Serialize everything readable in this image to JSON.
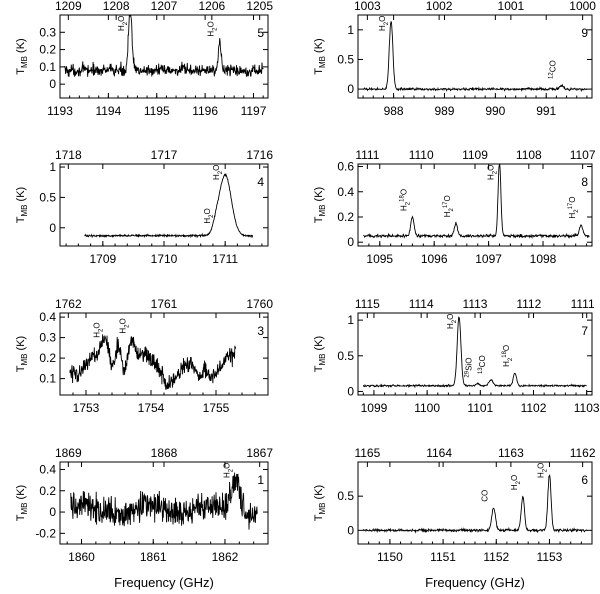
{
  "chart_data": [
    {
      "panel": "5",
      "type": "line",
      "ylabel": "T_MB (K)",
      "xlabel": "",
      "xlim": [
        1193,
        1197.3
      ],
      "ylim": [
        -0.08,
        0.4
      ],
      "xticks": [
        "1193",
        "1194",
        "1195",
        "1196",
        "1197"
      ],
      "topticks": [
        "1209",
        "1208",
        "1207",
        "1206",
        "1205"
      ],
      "topvals": [
        1209,
        1208,
        1207,
        1206,
        1205
      ],
      "yticks": [
        "0",
        "0.1",
        "0.2",
        "0.3"
      ],
      "baseline": 0.08,
      "noise": 0.035,
      "xstart": 1193.1,
      "xend": 1197.2,
      "lines": [
        {
          "label": "H2O",
          "x": 1194.45,
          "peak": 0.36,
          "width": 0.035
        },
        {
          "label": "H2O",
          "x": 1196.3,
          "peak": 0.16,
          "width": 0.03
        }
      ]
    },
    {
      "panel": "9",
      "type": "line",
      "ylabel": "T_MB (K)",
      "xlabel": "",
      "xlim": [
        987.3,
        991.9
      ],
      "ylim": [
        -0.15,
        1.25
      ],
      "xticks": [
        "988",
        "989",
        "990",
        "991"
      ],
      "topticks": [
        "1003",
        "1002",
        "1001",
        "1000"
      ],
      "topvals": [
        1003,
        1002,
        1001,
        1000
      ],
      "yticks": [
        "0",
        "0.5",
        "1"
      ],
      "baseline": 0.0,
      "noise": 0.02,
      "xstart": 987.4,
      "xend": 991.8,
      "lines": [
        {
          "label": "H2O",
          "x": 987.95,
          "peak": 1.15,
          "width": 0.035
        },
        {
          "label": "12CO",
          "x": 991.3,
          "peak": 0.07,
          "width": 0.03
        }
      ]
    },
    {
      "panel": "4",
      "type": "line",
      "ylabel": "T_MB (K)",
      "xlabel": "",
      "xlim": [
        1708.3,
        1711.7
      ],
      "ylim": [
        -0.3,
        1.05
      ],
      "xticks": [
        "1709",
        "1710",
        "1711"
      ],
      "topticks": [
        "1718",
        "1717",
        "1716"
      ],
      "topvals": [
        1718,
        1717,
        1716
      ],
      "yticks": [
        "0",
        "0.5",
        "1"
      ],
      "baseline": -0.13,
      "noise": 0.015,
      "xstart": 1708.7,
      "xend": 1711.45,
      "lines": [
        {
          "label": "H2O",
          "x": 1710.85,
          "peak": 0.1,
          "width": 0.05
        },
        {
          "label": "H2O",
          "x": 1711.0,
          "peak": 1.0,
          "width": 0.1
        }
      ]
    },
    {
      "panel": "8",
      "type": "line",
      "ylabel": "T_MB (K)",
      "xlabel": "",
      "xlim": [
        1094.6,
        1098.9
      ],
      "ylim": [
        -0.03,
        0.62
      ],
      "xticks": [
        "1095",
        "1096",
        "1097",
        "1098"
      ],
      "topticks": [
        "1111",
        "1110",
        "1109",
        "1108",
        "1107"
      ],
      "topvals": [
        1111,
        1110,
        1109,
        1108,
        1107
      ],
      "yticks": [
        "0",
        "0.2",
        "0.4",
        "0.6"
      ],
      "baseline": 0.05,
      "noise": 0.012,
      "xstart": 1094.7,
      "xend": 1098.85,
      "lines": [
        {
          "label": "H2 18O",
          "x": 1095.6,
          "peak": 0.15,
          "width": 0.03
        },
        {
          "label": "H2 17O",
          "x": 1096.4,
          "peak": 0.1,
          "width": 0.03
        },
        {
          "label": "H2O",
          "x": 1097.2,
          "peak": 0.6,
          "width": 0.025
        },
        {
          "label": "H2 17O",
          "x": 1098.7,
          "peak": 0.09,
          "width": 0.03
        }
      ]
    },
    {
      "panel": "3",
      "type": "line",
      "ylabel": "T_MB (K)",
      "xlabel": "",
      "xlim": [
        1752.6,
        1755.8
      ],
      "ylim": [
        0.02,
        0.42
      ],
      "xticks": [
        "1753",
        "1754",
        "1755"
      ],
      "topticks": [
        "1762",
        "1761",
        "1760"
      ],
      "topvals": [
        1762,
        1761,
        1760
      ],
      "yticks": [
        "0.1",
        "0.2",
        "0.3",
        "0.4"
      ],
      "baseline": 0.17,
      "noise": 0.04,
      "xstart": 1752.75,
      "xend": 1755.3,
      "lines": [
        {
          "label": "H2O",
          "x": 1753.3,
          "peak": 0.1,
          "width": 0.05
        },
        {
          "label": "H2O",
          "x": 1753.7,
          "peak": 0.12,
          "width": 0.05
        },
        {
          "label": "",
          "x": 1753.5,
          "peak": 0.15,
          "width": 0.04
        }
      ]
    },
    {
      "panel": "7",
      "type": "line",
      "ylabel": "T_MB (K)",
      "xlabel": "",
      "xlim": [
        1098.7,
        1103.1
      ],
      "ylim": [
        -0.05,
        1.1
      ],
      "xticks": [
        "1099",
        "1100",
        "1101",
        "1102",
        "1103"
      ],
      "topticks": [
        "1115",
        "1114",
        "1113",
        "1112",
        "1111"
      ],
      "topvals": [
        1115,
        1114,
        1113,
        1112,
        1111
      ],
      "yticks": [
        "0",
        "0.5",
        "1"
      ],
      "baseline": 0.08,
      "noise": 0.012,
      "xstart": 1098.8,
      "xend": 1103.0,
      "lines": [
        {
          "label": "H2O",
          "x": 1100.6,
          "peak": 0.97,
          "width": 0.035
        },
        {
          "label": "29SiO",
          "x": 1100.95,
          "peak": 0.03,
          "width": 0.03
        },
        {
          "label": "13CO",
          "x": 1101.2,
          "peak": 0.08,
          "width": 0.04
        },
        {
          "label": "H2 18O",
          "x": 1101.65,
          "peak": 0.18,
          "width": 0.03
        }
      ]
    },
    {
      "panel": "1",
      "type": "line",
      "ylabel": "T_MB (K)",
      "xlabel": "Frequency (GHz)",
      "xlim": [
        1859.7,
        1862.6
      ],
      "ylim": [
        -0.3,
        0.47
      ],
      "xticks": [
        "1860",
        "1861",
        "1862"
      ],
      "topticks": [
        "1869",
        "1868",
        "1867"
      ],
      "topvals": [
        1869,
        1868,
        1867
      ],
      "yticks": [
        "-0.2",
        "0",
        "0.2",
        "0.4"
      ],
      "baseline": 0.02,
      "noise": 0.13,
      "xstart": 1859.85,
      "xend": 1862.45,
      "lines": [
        {
          "label": "H2O",
          "x": 1862.15,
          "peak": 0.32,
          "width": 0.06
        }
      ]
    },
    {
      "panel": "6",
      "type": "line",
      "ylabel": "T_MB (K)",
      "xlabel": "Frequency (GHz)",
      "xlim": [
        1149.4,
        1153.8
      ],
      "ylim": [
        -0.2,
        1.0
      ],
      "xticks": [
        "1150",
        "1151",
        "1152",
        "1153"
      ],
      "topticks": [
        "1165",
        "1164",
        "1163",
        "1162"
      ],
      "topvals": [
        1165,
        1164,
        1163,
        1162
      ],
      "yticks": [
        "0",
        "0.5"
      ],
      "baseline": 0.0,
      "noise": 0.018,
      "xstart": 1149.5,
      "xend": 1153.7,
      "lines": [
        {
          "label": "CO",
          "x": 1151.95,
          "peak": 0.33,
          "width": 0.035
        },
        {
          "label": "H2O",
          "x": 1152.5,
          "peak": 0.5,
          "width": 0.03
        },
        {
          "label": "H2O",
          "x": 1153.0,
          "peak": 0.82,
          "width": 0.03
        }
      ]
    }
  ]
}
